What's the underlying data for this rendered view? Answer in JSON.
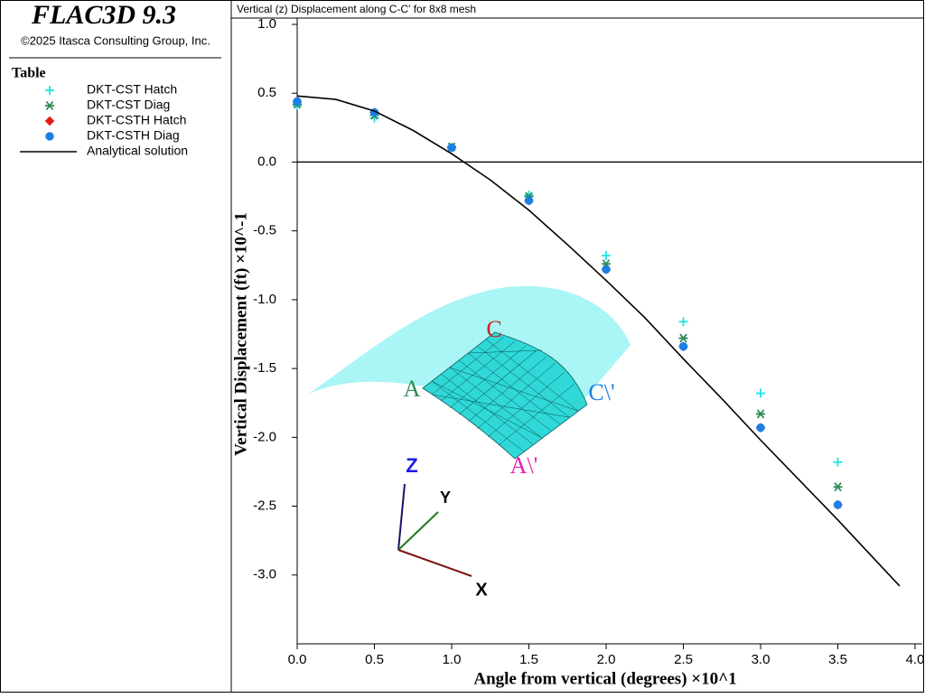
{
  "header": {
    "product": "FLAC3D 9.3",
    "copyright": "©2025 Itasca Consulting Group, Inc.",
    "legend_title": "Table"
  },
  "chart_data": {
    "type": "scatter",
    "title": "Vertical (z) Displacement along C-C' for 8x8 mesh",
    "x_label": "Angle from vertical (degrees) ×10^1",
    "y_label": "Vertical Displacement (ft) ×10^-1",
    "annotations": [
      "C",
      "A",
      "C\\'",
      "A\\'",
      "Z",
      "Y",
      "X"
    ],
    "xlim": [
      0,
      4.0
    ],
    "xticks": [
      {
        "value": 0,
        "label": "0.0"
      },
      {
        "value": 0.5,
        "label": "0.5"
      },
      {
        "value": 1,
        "label": "1.0"
      },
      {
        "value": 1.5,
        "label": "1.5"
      },
      {
        "value": 2,
        "label": "2.0"
      },
      {
        "value": 2.5,
        "label": "2.5"
      },
      {
        "value": 3,
        "label": "3.0"
      },
      {
        "value": 3.5,
        "label": "3.5"
      },
      {
        "value": 4,
        "label": "4.0"
      }
    ],
    "ylim": [
      -3.5,
      1.0
    ],
    "yticks": [
      {
        "value": 1,
        "label": "1.0"
      },
      0.5,
      {
        "value": 0,
        "label": "0.0"
      },
      -0.5,
      {
        "value": -1,
        "label": "-1.0"
      },
      -1.5,
      {
        "value": -2,
        "label": "-2.0"
      },
      -2.5,
      {
        "value": -3,
        "label": "-3.0"
      }
    ],
    "zero_line": true,
    "series": [
      {
        "name": "DKT-CST Hatch",
        "color": "#19e6e6",
        "marker": "plus",
        "x": [
          0,
          0.5,
          1,
          1.5,
          2,
          2.5,
          3,
          3.5
        ],
        "values": [
          0.41,
          0.32,
          0.105,
          -0.24,
          -0.68,
          -1.16,
          -1.68,
          -2.18
        ]
      },
      {
        "name": "DKT-CST Diag",
        "color": "#2e8b57",
        "marker": "star",
        "x": [
          0,
          0.5,
          1,
          1.5,
          2,
          2.5,
          3,
          3.5
        ],
        "values": [
          0.42,
          0.34,
          0.11,
          -0.25,
          -0.74,
          -1.28,
          -1.83,
          -2.36
        ]
      },
      {
        "name": "DKT-CSTH Hatch",
        "color": "#e61a1a",
        "marker": "diamond",
        "x": [
          0,
          0.5,
          1,
          1.5,
          2,
          2.5,
          3,
          3.5
        ],
        "values": [
          0.44,
          0.36,
          0.105,
          -0.28,
          -0.78,
          -1.34,
          -1.93,
          -2.49
        ]
      },
      {
        "name": "DKT-CSTH Diag",
        "color": "#1a80e6",
        "marker": "circle",
        "x": [
          0,
          0.5,
          1,
          1.5,
          2,
          2.5,
          3,
          3.5
        ],
        "values": [
          0.44,
          0.36,
          0.105,
          -0.28,
          -0.78,
          -1.34,
          -1.93,
          -2.49
        ]
      },
      {
        "name": "Analytical solution",
        "color": "#000000",
        "marker": "line",
        "x": [
          0,
          0.25,
          0.5,
          0.75,
          1,
          1.25,
          1.5,
          1.75,
          2,
          2.25,
          2.5,
          2.75,
          3,
          3.25,
          3.5,
          3.75,
          3.9
        ],
        "values": [
          0.48,
          0.455,
          0.37,
          0.23,
          0.06,
          -0.13,
          -0.35,
          -0.6,
          -0.86,
          -1.13,
          -1.43,
          -1.72,
          -2.02,
          -2.31,
          -2.6,
          -2.9,
          -3.08
        ]
      }
    ]
  }
}
